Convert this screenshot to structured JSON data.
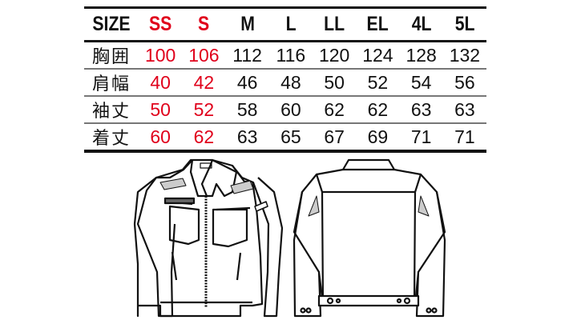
{
  "size_table": {
    "header_label": "SIZE",
    "sizes": [
      "SS",
      "S",
      "M",
      "L",
      "LL",
      "EL",
      "4L",
      "5L"
    ],
    "highlight_sizes": [
      "SS",
      "S"
    ],
    "highlight_color": "#e0001b",
    "rows": [
      {
        "label": "胸囲",
        "values": [
          "100",
          "106",
          "112",
          "116",
          "120",
          "124",
          "128",
          "132"
        ]
      },
      {
        "label": "肩幅",
        "values": [
          "40",
          "42",
          "46",
          "48",
          "50",
          "52",
          "54",
          "56"
        ]
      },
      {
        "label": "袖丈",
        "values": [
          "50",
          "52",
          "58",
          "60",
          "62",
          "62",
          "63",
          "63"
        ]
      },
      {
        "label": "着丈",
        "values": [
          "60",
          "62",
          "63",
          "65",
          "67",
          "69",
          "71",
          "71"
        ]
      }
    ]
  },
  "illustrations": [
    "jacket-front",
    "jacket-back"
  ]
}
